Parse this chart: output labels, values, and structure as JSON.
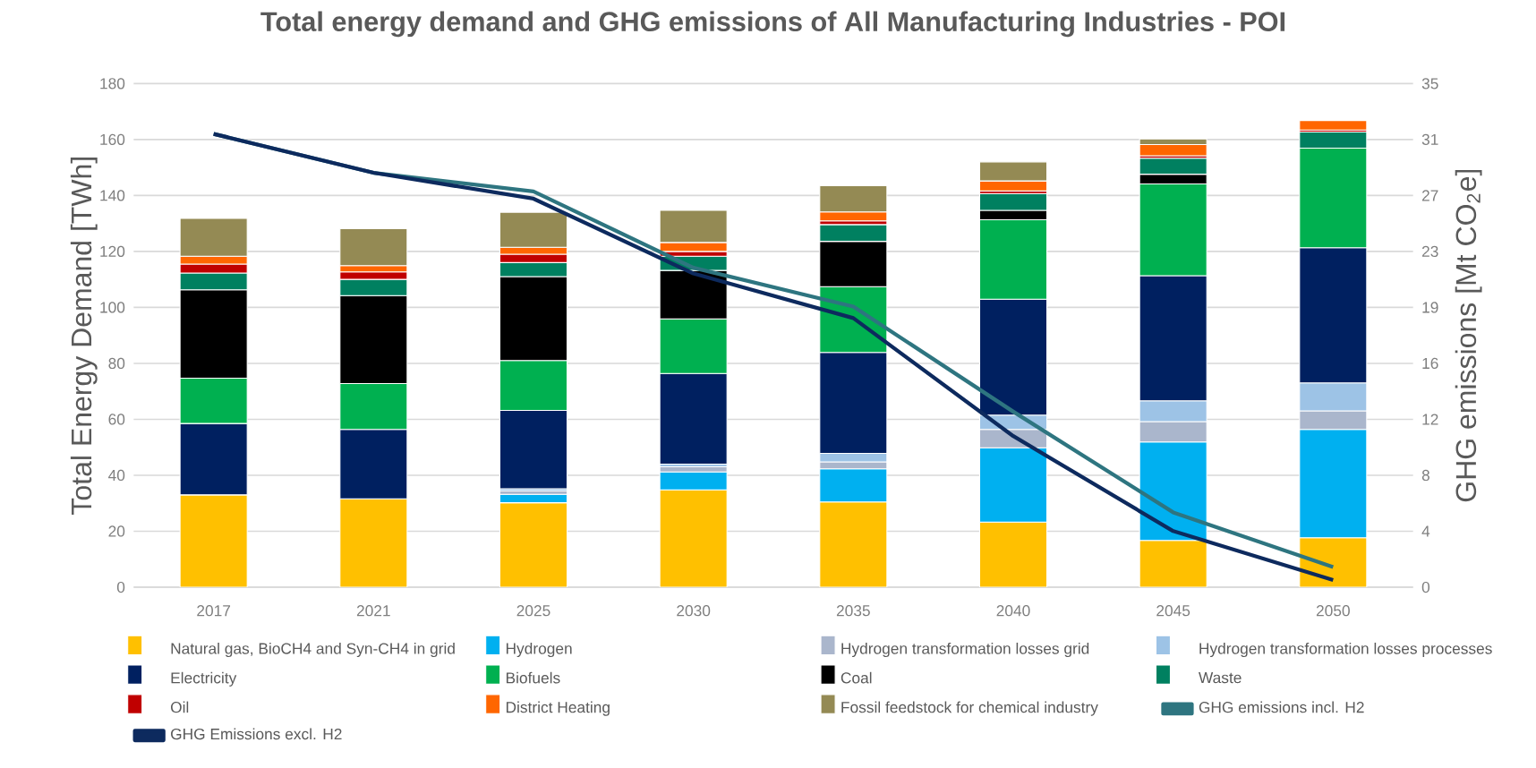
{
  "chart_data": {
    "type": "bar",
    "stacked": true,
    "title": "Total energy demand and GHG emissions of All Manufacturing Industries - POI",
    "ylabel": "Total Energy Demand [TWh]",
    "y2label": "GHG emissions [Mt CO$_{2}$e]",
    "categories": [
      "2017",
      "2021",
      "2025",
      "2030",
      "2035",
      "2040",
      "2045",
      "2050"
    ],
    "ylim": [
      0,
      180
    ],
    "yticks": [
      0,
      20,
      40,
      60,
      80,
      100,
      120,
      140,
      160,
      180
    ],
    "y2lim": [
      0,
      35
    ],
    "y2ticks": [
      {
        "value": 0,
        "label": "0"
      },
      {
        "value": 3.889,
        "label": "4"
      },
      {
        "value": 7.778,
        "label": "8"
      },
      {
        "value": 11.667,
        "label": "12"
      },
      {
        "value": 15.556,
        "label": "16"
      },
      {
        "value": 19.444,
        "label": "19"
      },
      {
        "value": 23.333,
        "label": "23"
      },
      {
        "value": 27.222,
        "label": "27"
      },
      {
        "value": 31.111,
        "label": "31"
      },
      {
        "value": 35,
        "label": "35"
      }
    ],
    "grid": "y",
    "legend": "bottom",
    "series": [
      {
        "name": "Natural gas, BioCH4 and Syn-CH4 in grid",
        "color": "#ffc000",
        "values": [
          33,
          31.6,
          30.2,
          34.8,
          30.5,
          23.3,
          16.7,
          17.7
        ]
      },
      {
        "name": "Hydrogen",
        "color": "#00b0f0",
        "values": [
          0,
          0,
          3,
          6.4,
          11.8,
          26.5,
          35.2,
          38.7
        ]
      },
      {
        "name": "Hydrogen transformation losses grid",
        "color": "#aab6cc",
        "values": [
          0,
          0,
          1.2,
          1.8,
          2.5,
          6.6,
          7.3,
          6.6
        ]
      },
      {
        "name": "Hydrogen transformation losses processes",
        "color": "#9dc3e6",
        "values": [
          0,
          0,
          0.8,
          1,
          3,
          5.1,
          7.4,
          10
        ]
      },
      {
        "name": "Electricity",
        "color": "#002060",
        "values": [
          25.5,
          24.8,
          28,
          32.4,
          36.1,
          41.4,
          44.7,
          48.3
        ]
      },
      {
        "name": "Biofuels",
        "color": "#00b050",
        "values": [
          16.2,
          16.4,
          17.8,
          19.5,
          23.5,
          28.4,
          32.8,
          35.6
        ]
      },
      {
        "name": "Coal",
        "color": "#000000",
        "values": [
          31.6,
          31.4,
          30,
          17.3,
          16.2,
          3.4,
          3.5,
          0
        ]
      },
      {
        "name": "Waste",
        "color": "#008060",
        "values": [
          6,
          5.8,
          5,
          5.1,
          6,
          6,
          5.7,
          5.8
        ]
      },
      {
        "name": "Oil",
        "color": "#c00000",
        "values": [
          3.2,
          2.7,
          3,
          1.7,
          1.3,
          0.9,
          0.9,
          0.7
        ]
      },
      {
        "name": "District Heating",
        "color": "#ff6600",
        "values": [
          2.8,
          2.2,
          2.5,
          3.2,
          3.2,
          3.6,
          4,
          3.4
        ]
      },
      {
        "name": "Fossil feedstock for chemical industry",
        "color": "#948a54",
        "values": [
          13.5,
          13.2,
          12.5,
          11.5,
          9.4,
          6.8,
          2,
          0
        ]
      },
      {
        "name": "GHG emissions incl. H2",
        "type": "line",
        "axis": "y2",
        "color": "#2e7580",
        "values": [
          31.5,
          28.8,
          27.5,
          22.2,
          19.5,
          12.2,
          5.2,
          1.4
        ]
      },
      {
        "name": "GHG Emissions excl. H2",
        "type": "line",
        "axis": "y2",
        "color": "#0d2a5e",
        "values": [
          31.5,
          28.8,
          27,
          21.8,
          18.7,
          10.5,
          3.9,
          0.5
        ]
      }
    ]
  }
}
